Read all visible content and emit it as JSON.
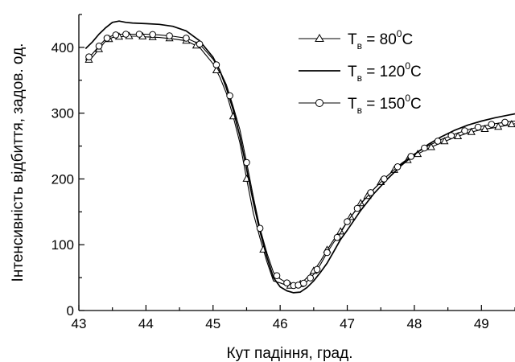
{
  "chart_data": {
    "type": "line",
    "title": "",
    "xlabel": "Кут падіння, град.",
    "ylabel": "Інтенсивність відбиття, задов. од.",
    "xlim": [
      43,
      49.5
    ],
    "ylim": [
      0,
      450
    ],
    "x_ticks": [
      43,
      44,
      45,
      46,
      47,
      48,
      49
    ],
    "y_ticks": [
      0,
      100,
      200,
      300,
      400
    ],
    "legend_position": "top-right",
    "series": [
      {
        "name": "T_в = 80⁰C",
        "legend_label": {
          "base": "T",
          "subscript": "в",
          "value": " = 80",
          "superscript": "0",
          "unit": "C"
        },
        "style": "line-triangle",
        "x": [
          43.1,
          43.2,
          43.3,
          43.4,
          43.5,
          43.6,
          43.7,
          43.8,
          43.9,
          44.0,
          44.2,
          44.4,
          44.6,
          44.8,
          45.0,
          45.1,
          45.2,
          45.3,
          45.4,
          45.5,
          45.6,
          45.7,
          45.8,
          45.9,
          46.0,
          46.1,
          46.2,
          46.3,
          46.4,
          46.5,
          46.6,
          46.7,
          46.8,
          46.9,
          47.0,
          47.2,
          47.4,
          47.6,
          47.8,
          48.0,
          48.2,
          48.4,
          48.6,
          48.8,
          49.0,
          49.2,
          49.4,
          49.5
        ],
        "y": [
          377,
          385,
          397,
          410,
          415,
          416,
          417,
          417,
          417,
          416,
          415,
          413,
          410,
          400,
          375,
          355,
          330,
          295,
          255,
          200,
          148,
          110,
          75,
          45,
          42,
          38,
          37,
          40,
          50,
          60,
          75,
          92,
          108,
          120,
          135,
          163,
          185,
          205,
          222,
          235,
          246,
          255,
          263,
          270,
          275,
          278,
          282,
          284
        ],
        "markers": [
          43.15,
          43.3,
          43.45,
          43.6,
          43.75,
          43.95,
          44.1,
          44.35,
          44.6,
          44.75,
          45.05,
          45.3,
          45.5,
          45.75,
          46.15,
          46.3,
          46.5,
          46.7,
          46.9,
          47.05,
          47.2,
          47.3,
          47.5,
          47.7,
          47.9,
          48.05,
          48.25,
          48.45,
          48.65,
          48.85,
          49.05,
          49.25,
          49.45
        ]
      },
      {
        "name": "T_в = 120⁰C",
        "legend_label": {
          "base": "T",
          "subscript": "в",
          "value": " = 120",
          "superscript": "0",
          "unit": "C"
        },
        "style": "line",
        "x": [
          43.1,
          43.2,
          43.3,
          43.4,
          43.5,
          43.6,
          43.7,
          43.8,
          44.0,
          44.2,
          44.4,
          44.6,
          44.8,
          45.0,
          45.1,
          45.2,
          45.3,
          45.4,
          45.5,
          45.6,
          45.7,
          45.8,
          45.9,
          46.0,
          46.1,
          46.2,
          46.3,
          46.4,
          46.5,
          46.6,
          46.7,
          46.8,
          46.9,
          47.0,
          47.2,
          47.4,
          47.6,
          47.8,
          48.0,
          48.2,
          48.4,
          48.6,
          48.8,
          49.0,
          49.2,
          49.4,
          49.5
        ],
        "y": [
          398,
          408,
          420,
          430,
          438,
          440,
          438,
          437,
          436,
          435,
          432,
          425,
          410,
          385,
          365,
          338,
          305,
          265,
          215,
          165,
          120,
          82,
          50,
          36,
          30,
          27,
          28,
          35,
          45,
          58,
          72,
          90,
          108,
          122,
          152,
          178,
          200,
          220,
          237,
          252,
          264,
          274,
          282,
          288,
          293,
          297,
          299
        ]
      },
      {
        "name": "T_в = 150⁰C",
        "legend_label": {
          "base": "T",
          "subscript": "в",
          "value": " = 150",
          "superscript": "0",
          "unit": "C"
        },
        "style": "line-circle",
        "x": [
          43.1,
          43.2,
          43.3,
          43.4,
          43.5,
          43.6,
          43.7,
          43.8,
          43.9,
          44.0,
          44.2,
          44.4,
          44.6,
          44.8,
          45.0,
          45.1,
          45.2,
          45.3,
          45.4,
          45.5,
          45.6,
          45.7,
          45.8,
          45.9,
          46.0,
          46.1,
          46.2,
          46.3,
          46.4,
          46.5,
          46.6,
          46.7,
          46.8,
          46.9,
          47.0,
          47.2,
          47.4,
          47.6,
          47.8,
          48.0,
          48.2,
          48.4,
          48.6,
          48.8,
          49.0,
          49.2,
          49.4,
          49.5
        ],
        "y": [
          381,
          390,
          402,
          413,
          418,
          420,
          420,
          420,
          420,
          420,
          419,
          417,
          414,
          405,
          382,
          365,
          343,
          310,
          275,
          225,
          173,
          125,
          88,
          58,
          48,
          42,
          38,
          39,
          44,
          55,
          70,
          88,
          104,
          118,
          135,
          162,
          185,
          205,
          223,
          238,
          250,
          260,
          268,
          275,
          280,
          284,
          287,
          288
        ],
        "markers": [
          43.15,
          43.3,
          43.42,
          43.55,
          43.7,
          43.9,
          44.1,
          44.35,
          44.6,
          44.8,
          45.05,
          45.25,
          45.5,
          45.7,
          45.95,
          46.1,
          46.2,
          46.27,
          46.35,
          46.45,
          46.55,
          46.7,
          46.85,
          47.0,
          47.15,
          47.35,
          47.55,
          47.75,
          47.95,
          48.15,
          48.35,
          48.55,
          48.75,
          48.95,
          49.15,
          49.35
        ]
      }
    ]
  }
}
